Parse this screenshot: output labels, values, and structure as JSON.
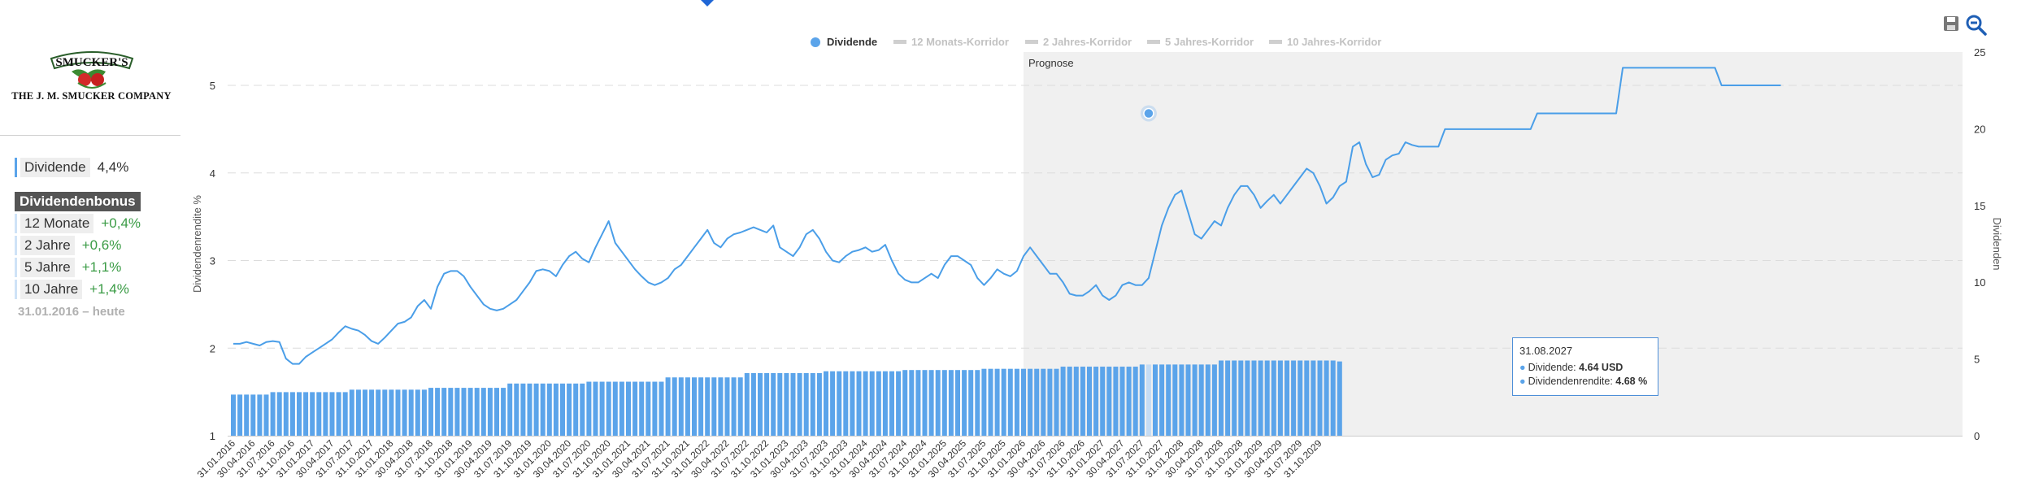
{
  "company": {
    "logo_text": "SMUCKER'S",
    "name": "THE J. M. SMUCKER COMPANY"
  },
  "sidebar": {
    "dividend_label": "Dividende",
    "dividend_value": "4,4%",
    "bonus_title": "Dividendenbonus",
    "bonus_items": [
      {
        "label": "12 Monate",
        "value": "+0,4%"
      },
      {
        "label": "2 Jahre",
        "value": "+0,6%"
      },
      {
        "label": "5 Jahre",
        "value": "+1,1%"
      },
      {
        "label": "10 Jahre",
        "value": "+1,4%"
      }
    ],
    "period": "31.01.2016 – heute"
  },
  "legend": [
    {
      "label": "Dividende",
      "active": true
    },
    {
      "label": "12 Monats-Korridor",
      "active": false
    },
    {
      "label": "2 Jahres-Korridor",
      "active": false
    },
    {
      "label": "5 Jahres-Korridor",
      "active": false
    },
    {
      "label": "10 Jahres-Korridor",
      "active": false
    }
  ],
  "toolbar": {
    "save_icon": "save-icon",
    "zoom_icon": "zoom-out-icon"
  },
  "tooltip": {
    "date": "31.08.2027",
    "dividend_label": "Dividende:",
    "dividend_value": "4.64 USD",
    "yield_label": "Dividendenrendite:",
    "yield_value": "4.68 %"
  },
  "colors": {
    "line": "#4a9ee8",
    "bars": "#5ba4ea",
    "forecast_bg": "#f0f0f0",
    "positive": "#3a9b45",
    "bonus_bg": "#555555"
  },
  "chart_data": {
    "type": "line+bar",
    "forecast_label": "Prognose",
    "forecast_start": "31.01.2026",
    "ylabel_left": "Dividendenrendite %",
    "ylabel_right": "Dividenden",
    "ylim_left": [
      1,
      5.5
    ],
    "ylim_right": [
      0,
      25
    ],
    "yticks_left": [
      "1",
      "2",
      "3",
      "4",
      "5"
    ],
    "yticks_right": [
      "0",
      "5",
      "10",
      "15",
      "20",
      "25"
    ],
    "x_tick_labels": [
      "31.01.2016",
      "30.04.2016",
      "31.07.2016",
      "31.10.2016",
      "31.01.2017",
      "30.04.2017",
      "31.07.2017",
      "31.10.2017",
      "31.01.2018",
      "30.04.2018",
      "31.07.2018",
      "31.10.2018",
      "31.01.2019",
      "30.04.2019",
      "31.07.2019",
      "31.10.2019",
      "31.01.2020",
      "30.04.2020",
      "31.07.2020",
      "31.10.2020",
      "31.01.2021",
      "30.04.2021",
      "31.07.2021",
      "31.10.2021",
      "31.01.2022",
      "30.04.2022",
      "31.07.2022",
      "31.10.2022",
      "31.01.2023",
      "30.04.2023",
      "31.07.2023",
      "31.10.2023",
      "31.01.2024",
      "30.04.2024",
      "31.07.2024",
      "31.10.2024",
      "31.01.2025",
      "30.04.2025",
      "31.07.2025",
      "31.10.2025",
      "31.01.2026",
      "30.04.2026",
      "31.07.2026",
      "31.10.2026",
      "31.01.2027",
      "30.04.2027",
      "31.07.2027",
      "31.10.2027",
      "31.01.2028",
      "30.04.2028",
      "31.07.2028",
      "31.10.2028",
      "31.01.2029",
      "30.04.2029",
      "31.07.2029",
      "31.10.2029"
    ],
    "series": [
      {
        "name": "Dividendenrendite",
        "axis": "left",
        "kind": "line",
        "values_monthly_from_2016_01": [
          2.05,
          2.05,
          2.07,
          2.05,
          2.03,
          2.07,
          2.08,
          2.07,
          1.88,
          1.82,
          1.82,
          1.9,
          1.95,
          2.0,
          2.05,
          2.1,
          2.18,
          2.25,
          2.22,
          2.2,
          2.15,
          2.08,
          2.05,
          2.12,
          2.2,
          2.28,
          2.3,
          2.35,
          2.48,
          2.55,
          2.45,
          2.7,
          2.85,
          2.88,
          2.88,
          2.82,
          2.7,
          2.6,
          2.5,
          2.45,
          2.43,
          2.45,
          2.5,
          2.55,
          2.65,
          2.75,
          2.88,
          2.9,
          2.88,
          2.82,
          2.95,
          3.05,
          3.1,
          3.02,
          2.98,
          3.15,
          3.3,
          3.45,
          3.2,
          3.1,
          3.0,
          2.9,
          2.82,
          2.75,
          2.72,
          2.75,
          2.8,
          2.9,
          2.95,
          3.05,
          3.15,
          3.25,
          3.35,
          3.2,
          3.15,
          3.25,
          3.3,
          3.32,
          3.35,
          3.38,
          3.35,
          3.32,
          3.4,
          3.15,
          3.1,
          3.05,
          3.15,
          3.3,
          3.35,
          3.25,
          3.1,
          3.0,
          2.98,
          3.05,
          3.1,
          3.12,
          3.15,
          3.1,
          3.12,
          3.18,
          3.0,
          2.85,
          2.78,
          2.75,
          2.75,
          2.8,
          2.85,
          2.8,
          2.95,
          3.05,
          3.05,
          3.0,
          2.95,
          2.8,
          2.72,
          2.8,
          2.9,
          2.85,
          2.82,
          2.88,
          3.05,
          3.15,
          3.05,
          2.95,
          2.85,
          2.85,
          2.75,
          2.62,
          2.6,
          2.6,
          2.65,
          2.72,
          2.6,
          2.55,
          2.6,
          2.72,
          2.75,
          2.72,
          2.72,
          2.8,
          3.1,
          3.4,
          3.6,
          3.75,
          3.8,
          3.55,
          3.3,
          3.25,
          3.35,
          3.45,
          3.4,
          3.6,
          3.75,
          3.85,
          3.85,
          3.75,
          3.6,
          3.68,
          3.75,
          3.65,
          3.75,
          3.85,
          3.95,
          4.05,
          4.0,
          3.85,
          3.65,
          3.72,
          3.85,
          3.9,
          4.3,
          4.35,
          4.1,
          3.95,
          3.98,
          4.15,
          4.2,
          4.22,
          4.35,
          4.32,
          4.3,
          4.3,
          4.3,
          4.3,
          4.5,
          4.5,
          4.5,
          4.5,
          4.5,
          4.5,
          4.5,
          4.5,
          4.5,
          4.5,
          4.5,
          4.5,
          4.5,
          4.5,
          4.68,
          4.68,
          4.68,
          4.68,
          4.68,
          4.68,
          4.68,
          4.68,
          4.68,
          4.68,
          4.68,
          4.68,
          4.68,
          5.2,
          5.2,
          5.2,
          5.2,
          5.2,
          5.2,
          5.2,
          5.2,
          5.2,
          5.2,
          5.2,
          5.2,
          5.2,
          5.2,
          5.2,
          5.0,
          5.0,
          5.0,
          5.0,
          5.0,
          5.0,
          5.0,
          5.0,
          5.0,
          5.0
        ]
      },
      {
        "name": "Dividende",
        "axis": "right",
        "kind": "bar",
        "unit": "USD",
        "segments": [
          {
            "from": "2016-01",
            "months": 6,
            "value": 2.68
          },
          {
            "from": "2016-07",
            "months": 12,
            "value": 2.84
          },
          {
            "from": "2017-07",
            "months": 12,
            "value": 3.0
          },
          {
            "from": "2018-07",
            "months": 12,
            "value": 3.12
          },
          {
            "from": "2019-07",
            "months": 12,
            "value": 3.4
          },
          {
            "from": "2020-07",
            "months": 12,
            "value": 3.52
          },
          {
            "from": "2021-07",
            "months": 12,
            "value": 3.8
          },
          {
            "from": "2022-07",
            "months": 12,
            "value": 4.08
          },
          {
            "from": "2023-07",
            "months": 12,
            "value": 4.2
          },
          {
            "from": "2024-07",
            "months": 12,
            "value": 4.28
          },
          {
            "from": "2025-07",
            "months": 12,
            "value": 4.36
          },
          {
            "from": "2026-07",
            "months": 12,
            "value": 4.5
          },
          {
            "from": "2027-07",
            "months": 12,
            "value": 4.64
          },
          {
            "from": "2028-07",
            "months": 18,
            "value": 4.9
          },
          {
            "from": "2030-01",
            "months": 1,
            "value": 4.84
          }
        ]
      }
    ],
    "highlight_point": {
      "date": "31.08.2027",
      "yield": 4.68,
      "dividend": 4.64
    }
  }
}
